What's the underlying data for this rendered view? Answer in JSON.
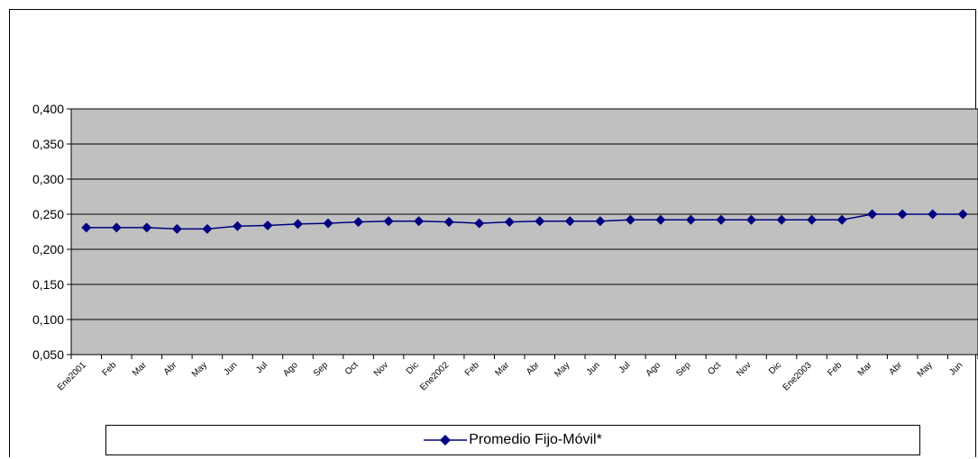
{
  "chart_data": {
    "type": "line",
    "categories": [
      "Ene2001",
      "Feb",
      "Mar",
      "Abr",
      "May",
      "Jun",
      "Jul",
      "Ago",
      "Sep",
      "Oct",
      "Nov",
      "Dic",
      "Ene2002",
      "Feb",
      "Mar",
      "Abr",
      "May",
      "Jun",
      "Jul",
      "Ago",
      "Sep",
      "Oct",
      "Nov",
      "Dic",
      "Ene2003",
      "Feb",
      "Mar",
      "Abr",
      "May",
      "Jun"
    ],
    "series": [
      {
        "name": "Promedio Fijo-Móvil*",
        "values": [
          0.231,
          0.231,
          0.231,
          0.229,
          0.229,
          0.233,
          0.234,
          0.236,
          0.237,
          0.239,
          0.24,
          0.24,
          0.239,
          0.237,
          0.239,
          0.24,
          0.24,
          0.24,
          0.242,
          0.242,
          0.242,
          0.242,
          0.242,
          0.242,
          0.242,
          0.242,
          0.25,
          0.25,
          0.25,
          0.25
        ],
        "color": "#000080"
      }
    ],
    "yticks": [
      "0,050",
      "0,100",
      "0,150",
      "0,200",
      "0,250",
      "0,300",
      "0,350",
      "0,400"
    ],
    "ylim": [
      0.05,
      0.4
    ],
    "grid": true,
    "plot_background": "#c0c0c0",
    "legend_position": "bottom"
  }
}
